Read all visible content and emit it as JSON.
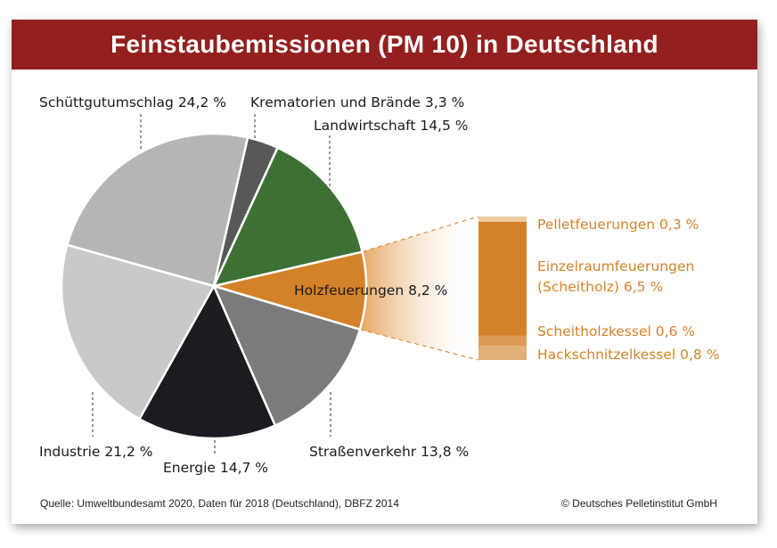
{
  "chart_data": {
    "type": "pie",
    "title": "Feinstaubemissionen (PM 10) in Deutschland",
    "unit": "%",
    "slices": [
      {
        "label": "Holzfeuerungen",
        "value": 8.2,
        "text": "Holzfeuerungen 8,2 %",
        "color": "#d4822a"
      },
      {
        "label": "Straßenverkehr",
        "value": 13.8,
        "text": "Straßenverkehr 13,8 %",
        "color": "#7b7b7b"
      },
      {
        "label": "Energie",
        "value": 14.7,
        "text": "Energie 14,7 %",
        "color": "#1d1b21"
      },
      {
        "label": "Industrie",
        "value": 21.2,
        "text": "Industrie 21,2 %",
        "color": "#c9c9cb"
      },
      {
        "label": "Schüttgutumschlag",
        "value": 24.2,
        "text": "Schüttgutumschlag 24,2 %",
        "color": "#b5b5b6"
      },
      {
        "label": "Krematorien und Brände",
        "value": 3.3,
        "text": "Krematorien und Brände 3,3 %",
        "color": "#58585a"
      },
      {
        "label": "Landwirtschaft",
        "value": 14.5,
        "text": "Landwirtschaft 14,5 %",
        "color": "#3c7133"
      }
    ],
    "breakdown": {
      "of": "Holzfeuerungen",
      "segments": [
        {
          "label": "Pelletfeuerungen",
          "value": 0.3,
          "text": "Pelletfeuerungen 0,3 %",
          "color": "#eccb9f"
        },
        {
          "label": "Einzelraumfeuerungen (Scheitholz)",
          "value": 6.5,
          "text1": "Einzelraumfeuerungen",
          "text2": "(Scheitholz) 6,5 %",
          "color": "#d4822a"
        },
        {
          "label": "Scheitholzkessel",
          "value": 0.6,
          "text": "Scheitholzkessel 0,6 %",
          "color": "#dc9a55"
        },
        {
          "label": "Hackschnitzelkessel",
          "value": 0.8,
          "text": "Hackschnitzelkessel 0,8 %",
          "color": "#e3b077"
        }
      ]
    }
  },
  "footer": {
    "source": "Quelle: Umweltbundesamt 2020, Daten für 2018 (Deutschland), DBFZ 2014",
    "copyright": "© Deutsches Pelletinstitut GmbH"
  }
}
